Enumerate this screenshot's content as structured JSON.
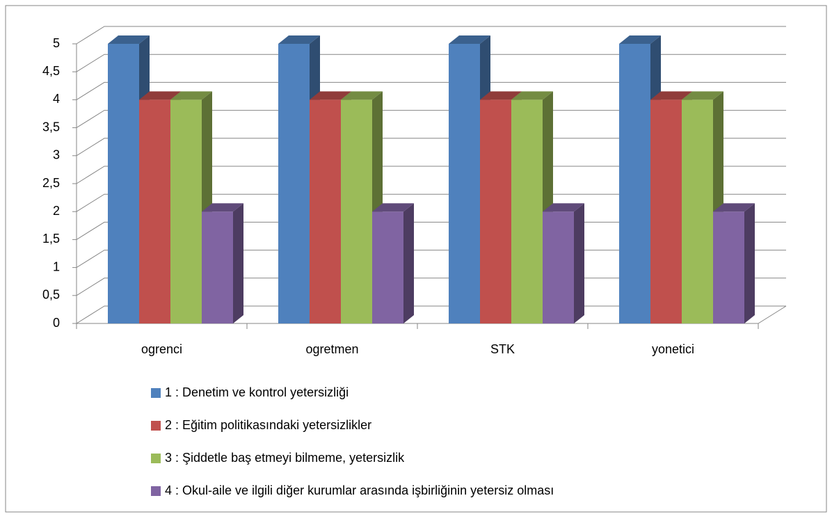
{
  "chart_data": {
    "type": "bar3d",
    "categories": [
      "ogrenci",
      "ogretmen",
      "STK",
      "yonetici"
    ],
    "series": [
      {
        "name": "1 : Denetim ve kontrol yetersizliği",
        "color": "#4f81bd",
        "values": [
          5,
          5,
          5,
          5
        ]
      },
      {
        "name": "2 : Eğitim politikasındaki yetersizlikler",
        "color": "#c0504d",
        "values": [
          4,
          4,
          4,
          4
        ]
      },
      {
        "name": "3 : Şiddetle baş etmeyi bilmeme, yetersizlik",
        "color": "#9bbb59",
        "values": [
          4,
          4,
          4,
          4
        ]
      },
      {
        "name": "4 : Okul-aile ve ilgili diğer kurumlar arasında işbirliğinin yetersiz olması",
        "color": "#8064a2",
        "values": [
          2,
          2,
          2,
          2
        ]
      }
    ],
    "ylim": [
      0,
      5
    ],
    "yticks": [
      0,
      {
        "value": 0.5,
        "label": "0,5"
      },
      1,
      {
        "value": 1.5,
        "label": "1,5"
      },
      2,
      {
        "value": 2.5,
        "label": "2,5"
      },
      3,
      {
        "value": 3.5,
        "label": "3,5"
      },
      4,
      {
        "value": 4.5,
        "label": "4,5"
      },
      5
    ],
    "grid": true,
    "legend": "bottom"
  }
}
